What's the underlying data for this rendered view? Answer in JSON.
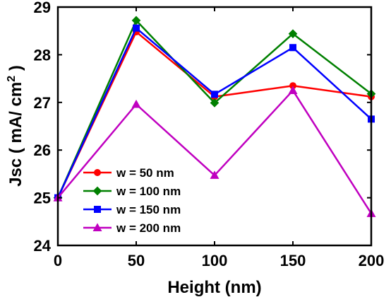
{
  "chart_data": {
    "type": "line",
    "xlabel": "Height (nm)",
    "ylabel": "Jsc ( mA/ cm2 )",
    "ylabel_parts": {
      "prefix": "Jsc ( mA/ cm",
      "sup": "2",
      "suffix": " )"
    },
    "x": [
      0,
      50,
      100,
      150,
      200
    ],
    "xlim": [
      0,
      200
    ],
    "ylim": [
      24,
      29
    ],
    "xticks": [
      "0",
      "50",
      "100",
      "150",
      "200"
    ],
    "yticks": [
      "24",
      "25",
      "26",
      "27",
      "28",
      "29"
    ],
    "grid": false,
    "legend_position": "lower-left",
    "series": [
      {
        "name": "w = 50 nm",
        "color": "#ff0000",
        "marker": "circle",
        "values": [
          25.0,
          28.48,
          27.12,
          27.35,
          27.12
        ]
      },
      {
        "name": "w = 100 nm",
        "color": "#008000",
        "marker": "diamond",
        "values": [
          25.0,
          28.72,
          26.99,
          28.44,
          27.18
        ]
      },
      {
        "name": "w = 150 nm",
        "color": "#0000ff",
        "marker": "square",
        "values": [
          25.0,
          28.56,
          27.17,
          28.15,
          26.65
        ]
      },
      {
        "name": "w = 200 nm",
        "color": "#c000c0",
        "marker": "triangle",
        "values": [
          25.0,
          26.96,
          25.47,
          27.25,
          24.67
        ]
      }
    ]
  }
}
